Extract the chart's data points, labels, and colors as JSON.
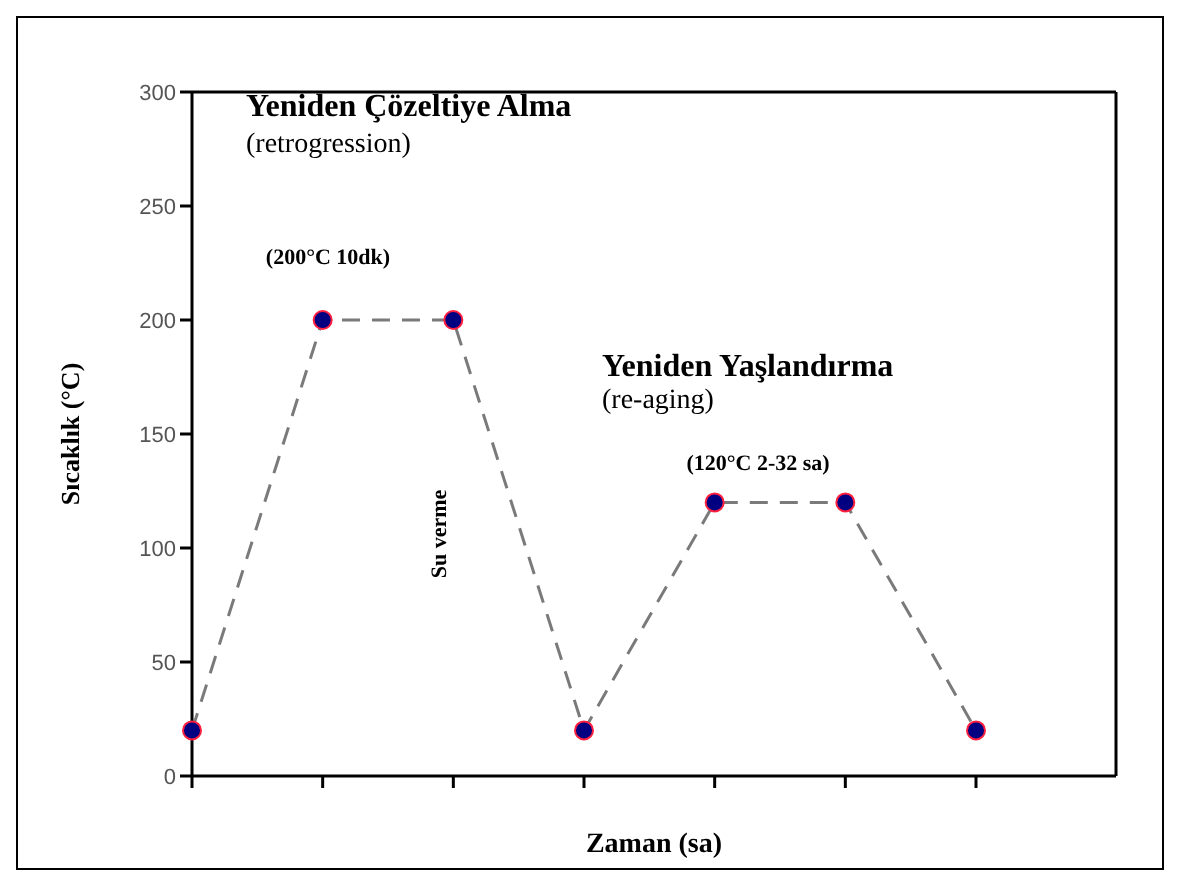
{
  "chart_data": {
    "type": "line",
    "xlabel": "Zaman (sa)",
    "ylabel": "Sıcaklık (°C)",
    "categories": [
      null,
      null,
      null,
      null,
      null,
      null,
      null
    ],
    "series": [
      {
        "color": "#000080",
        "values": [
          20,
          200,
          200,
          20,
          120,
          120,
          20
        ]
      }
    ],
    "ylim": [
      0,
      300
    ],
    "yticks": [
      0,
      50,
      100,
      150,
      200,
      250,
      300
    ],
    "tick_labels": "y",
    "marker": "circle",
    "line_style": "dashed",
    "grid": false,
    "legend": false,
    "annotations": [
      "Yeniden Çözeltiye Alma",
      "(retrogression)",
      "(200°C 10dk)",
      "Su verme",
      "Yeniden Yaşlandırma",
      "(re-aging)",
      "(120°C 2-32 sa)"
    ]
  }
}
